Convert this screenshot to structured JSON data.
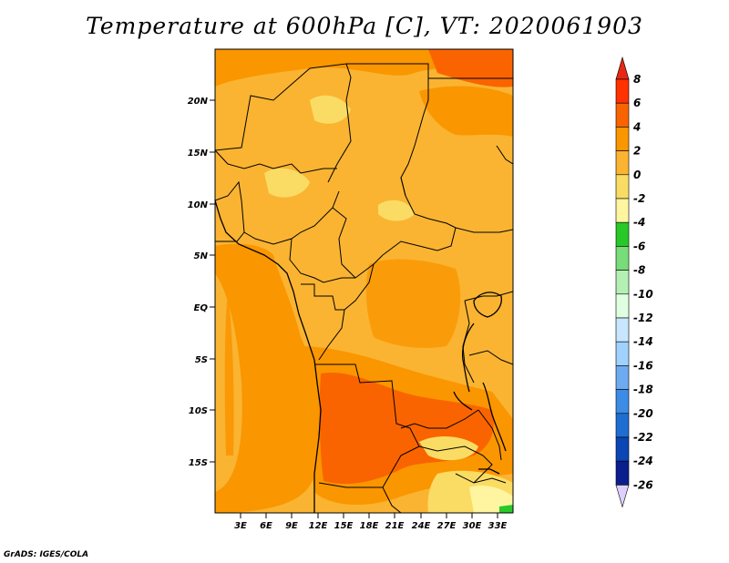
{
  "title": "Temperature at 600hPa [C], VT: 2020061903",
  "credit": "GrADS: IGES/COLA",
  "map": {
    "lat_labels": [
      "20N",
      "15N",
      "10N",
      "5N",
      "EQ",
      "5S",
      "10S",
      "15S"
    ],
    "lon_labels": [
      "3E",
      "6E",
      "9E",
      "12E",
      "15E",
      "18E",
      "21E",
      "24E",
      "27E",
      "30E",
      "33E"
    ]
  },
  "colorbar": {
    "labels": [
      "8",
      "6",
      "4",
      "2",
      "0",
      "-2",
      "-4",
      "-6",
      "-8",
      "-10",
      "-12",
      "-14",
      "-16",
      "-18",
      "-20",
      "-22",
      "-24",
      "-26"
    ],
    "colors": [
      "#f00a00",
      "#ff3200",
      "#fa6400",
      "#fa9600",
      "#fab432",
      "#fadc64",
      "#fff5a0",
      "#28c828",
      "#78dc78",
      "#b4f0b4",
      "#e0ffe0",
      "#c8e6ff",
      "#a0d2ff",
      "#6eaaf0",
      "#3c8ce6",
      "#1e6ed2",
      "#0a46b4",
      "#0a1e8c",
      "#000064"
    ],
    "top_arrow_color": "#e62814",
    "bottom_arrow_color": "#ddd0ff"
  }
}
